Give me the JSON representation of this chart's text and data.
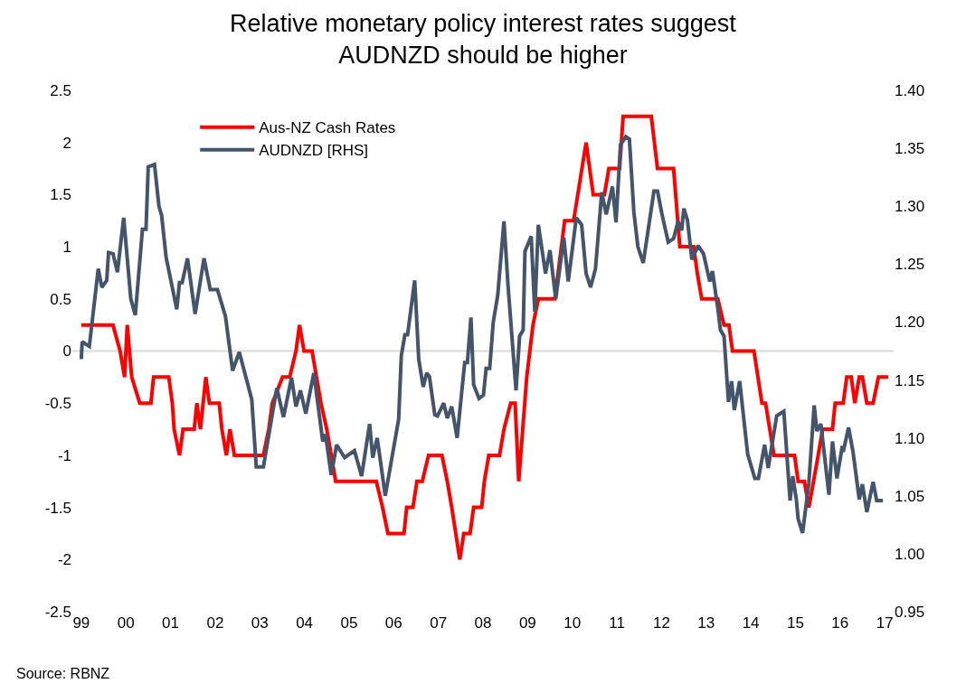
{
  "chart_data": {
    "type": "line",
    "title": "Relative monetary policy interest rates suggest\nAUDNZD should be higher",
    "annotations": [
      "Source: RBNZ"
    ],
    "xlim": [
      1998.8,
      2017.2
    ],
    "xticks": [
      {
        "value": 1999,
        "label": "99"
      },
      {
        "value": 2000,
        "label": "00"
      },
      {
        "value": 2001,
        "label": "01"
      },
      {
        "value": 2002,
        "label": "02"
      },
      {
        "value": 2003,
        "label": "03"
      },
      {
        "value": 2004,
        "label": "04"
      },
      {
        "value": 2005,
        "label": "05"
      },
      {
        "value": 2006,
        "label": "06"
      },
      {
        "value": 2007,
        "label": "07"
      },
      {
        "value": 2008,
        "label": "08"
      },
      {
        "value": 2009,
        "label": "09"
      },
      {
        "value": 2010,
        "label": "10"
      },
      {
        "value": 2011,
        "label": "11"
      },
      {
        "value": 2012,
        "label": "12"
      },
      {
        "value": 2013,
        "label": "13"
      },
      {
        "value": 2014,
        "label": "14"
      },
      {
        "value": 2015,
        "label": "15"
      },
      {
        "value": 2016,
        "label": "16"
      },
      {
        "value": 2017,
        "label": "17"
      }
    ],
    "ylim": [
      -2.5,
      2.5
    ],
    "yticks": [
      {
        "value": -2.5,
        "label": "-2.5"
      },
      {
        "value": -2,
        "label": "-2"
      },
      {
        "value": -1.5,
        "label": "-1.5"
      },
      {
        "value": -1,
        "label": "-1"
      },
      {
        "value": -0.5,
        "label": "-0.5"
      },
      {
        "value": 0,
        "label": "0"
      },
      {
        "value": 0.5,
        "label": "0.5"
      },
      {
        "value": 1,
        "label": "1"
      },
      {
        "value": 1.5,
        "label": "1.5"
      },
      {
        "value": 2,
        "label": "2"
      },
      {
        "value": 2.5,
        "label": "2.5"
      }
    ],
    "y2lim": [
      0.95,
      1.4
    ],
    "y2ticks": [
      {
        "value": 0.95,
        "label": "0.95"
      },
      {
        "value": 1.0,
        "label": "1.00"
      },
      {
        "value": 1.05,
        "label": "1.05"
      },
      {
        "value": 1.1,
        "label": "1.10"
      },
      {
        "value": 1.15,
        "label": "1.15"
      },
      {
        "value": 1.2,
        "label": "1.20"
      },
      {
        "value": 1.25,
        "label": "1.25"
      },
      {
        "value": 1.3,
        "label": "1.30"
      },
      {
        "value": 1.35,
        "label": "1.35"
      },
      {
        "value": 1.4,
        "label": "1.40"
      }
    ],
    "grid": false,
    "legend": "top left",
    "marker": "none",
    "line_style": "solid",
    "ref_lines": [
      {
        "axis": "y",
        "value": 0,
        "color": "#d9d9d9"
      }
    ],
    "series": [
      {
        "name": "Aus-NZ Cash Rates",
        "color": "#ff0000",
        "axis": "y",
        "x": [
          1999.0,
          1999.71,
          1999.87,
          1999.97,
          2000.03,
          2000.13,
          2000.31,
          2000.56,
          2000.62,
          2000.96,
          2001.04,
          2001.08,
          2001.2,
          2001.28,
          2001.53,
          2001.59,
          2001.67,
          2001.79,
          2001.87,
          2002.09,
          2002.15,
          2002.25,
          2002.33,
          2002.43,
          2003.08,
          2003.2,
          2003.28,
          2003.51,
          2003.67,
          2003.81,
          2003.89,
          2003.99,
          2004.17,
          2004.27,
          2004.37,
          2004.5,
          2004.6,
          2004.7,
          2005.61,
          2005.75,
          2005.87,
          2006.23,
          2006.29,
          2006.43,
          2006.52,
          2006.64,
          2006.78,
          2007.08,
          2007.2,
          2007.3,
          2007.48,
          2007.57,
          2007.71,
          2007.79,
          2007.97,
          2008.03,
          2008.13,
          2008.37,
          2008.47,
          2008.62,
          2008.72,
          2008.8,
          2008.98,
          2009.12,
          2009.24,
          2009.61,
          2009.83,
          2010.03,
          2010.31,
          2010.47,
          2010.72,
          2010.82,
          2011.06,
          2011.14,
          2011.77,
          2011.91,
          2012.27,
          2012.41,
          2012.72,
          2012.8,
          2012.9,
          2013.26,
          2013.4,
          2013.51,
          2013.59,
          2014.07,
          2014.25,
          2014.33,
          2014.52,
          2014.98,
          2015.06,
          2015.2,
          2015.3,
          2015.51,
          2015.61,
          2015.83,
          2015.89,
          2016.07,
          2016.15,
          2016.25,
          2016.33,
          2016.43,
          2016.5,
          2016.6,
          2016.74,
          2016.86,
          2017.08
        ],
        "values": [
          0.25,
          0.25,
          0,
          -0.25,
          0.25,
          -0.25,
          -0.5,
          -0.5,
          -0.25,
          -0.25,
          -0.5,
          -0.75,
          -1.0,
          -0.75,
          -0.75,
          -0.5,
          -0.75,
          -0.25,
          -0.5,
          -0.5,
          -0.75,
          -1.0,
          -0.75,
          -1.0,
          -1.0,
          -0.75,
          -0.5,
          -0.25,
          -0.25,
          0,
          0.25,
          0,
          0,
          -0.25,
          -0.5,
          -0.75,
          -1.0,
          -1.25,
          -1.25,
          -1.5,
          -1.75,
          -1.75,
          -1.5,
          -1.5,
          -1.25,
          -1.25,
          -1.0,
          -1.0,
          -1.25,
          -1.5,
          -2.0,
          -1.75,
          -1.75,
          -1.5,
          -1.5,
          -1.25,
          -1.0,
          -1.0,
          -0.75,
          -0.5,
          -0.5,
          -1.25,
          -0.25,
          0.25,
          0.5,
          0.5,
          1.25,
          1.25,
          2.0,
          1.5,
          1.5,
          1.75,
          1.75,
          2.25,
          2.25,
          1.75,
          1.75,
          1.0,
          1.0,
          0.75,
          0.5,
          0.5,
          0.25,
          0.25,
          0,
          0,
          -0.5,
          -0.5,
          -1.0,
          -1.0,
          -1.25,
          -1.25,
          -1.5,
          -1.0,
          -0.75,
          -0.75,
          -0.5,
          -0.5,
          -0.25,
          -0.25,
          -0.5,
          -0.25,
          -0.25,
          -0.5,
          -0.5,
          -0.25,
          -0.25
        ]
      },
      {
        "name": "AUDNZD [RHS]",
        "color": "#44546a",
        "axis": "y2",
        "x": [
          1999.0,
          1999.02,
          1999.18,
          1999.38,
          1999.46,
          1999.57,
          1999.61,
          1999.71,
          1999.81,
          1999.95,
          2000.11,
          2000.21,
          2000.37,
          2000.45,
          2000.5,
          2000.64,
          2000.74,
          2000.8,
          2000.9,
          2001.14,
          2001.2,
          2001.26,
          2001.38,
          2001.55,
          2001.75,
          2001.89,
          2002.05,
          2002.23,
          2002.39,
          2002.54,
          2002.82,
          2002.92,
          2003.08,
          2003.38,
          2003.53,
          2003.71,
          2003.81,
          2003.91,
          2004.03,
          2004.21,
          2004.41,
          2004.47,
          2004.6,
          2004.72,
          2004.9,
          2005.12,
          2005.28,
          2005.46,
          2005.53,
          2005.63,
          2005.81,
          2006.11,
          2006.17,
          2006.25,
          2006.31,
          2006.47,
          2006.56,
          2006.66,
          2006.74,
          2006.8,
          2006.92,
          2006.98,
          2007.12,
          2007.2,
          2007.3,
          2007.42,
          2007.59,
          2007.65,
          2007.73,
          2007.79,
          2007.91,
          2008.01,
          2008.07,
          2008.15,
          2008.23,
          2008.33,
          2008.47,
          2008.56,
          2008.74,
          2008.82,
          2008.9,
          2008.94,
          2009.08,
          2009.16,
          2009.24,
          2009.4,
          2009.5,
          2009.63,
          2009.81,
          2009.91,
          2010.09,
          2010.21,
          2010.31,
          2010.41,
          2010.52,
          2010.66,
          2010.76,
          2010.9,
          2010.98,
          2011.08,
          2011.2,
          2011.28,
          2011.38,
          2011.47,
          2011.59,
          2011.83,
          2011.91,
          2012.01,
          2012.15,
          2012.27,
          2012.37,
          2012.45,
          2012.5,
          2012.58,
          2012.68,
          2012.82,
          2012.94,
          2013.08,
          2013.14,
          2013.26,
          2013.32,
          2013.4,
          2013.5,
          2013.57,
          2013.63,
          2013.75,
          2013.93,
          2014.09,
          2014.17,
          2014.31,
          2014.39,
          2014.58,
          2014.74,
          2014.88,
          2014.94,
          2015.02,
          2015.06,
          2015.16,
          2015.3,
          2015.42,
          2015.48,
          2015.57,
          2015.75,
          2015.83,
          2015.93,
          2016.05,
          2016.07,
          2016.19,
          2016.29,
          2016.43,
          2016.5,
          2016.6,
          2016.74,
          2016.82,
          2016.96
        ],
        "values": [
          1.168,
          1.183,
          1.179,
          1.246,
          1.23,
          1.236,
          1.26,
          1.259,
          1.243,
          1.29,
          1.22,
          1.206,
          1.28,
          1.28,
          1.334,
          1.336,
          1.3,
          1.292,
          1.256,
          1.211,
          1.234,
          1.234,
          1.255,
          1.207,
          1.255,
          1.228,
          1.228,
          1.205,
          1.158,
          1.174,
          1.133,
          1.075,
          1.075,
          1.143,
          1.118,
          1.152,
          1.127,
          1.141,
          1.121,
          1.156,
          1.097,
          1.103,
          1.068,
          1.094,
          1.083,
          1.089,
          1.067,
          1.112,
          1.083,
          1.1,
          1.05,
          1.116,
          1.171,
          1.189,
          1.189,
          1.236,
          1.168,
          1.144,
          1.156,
          1.153,
          1.12,
          1.119,
          1.13,
          1.117,
          1.127,
          1.1,
          1.165,
          1.165,
          1.204,
          1.146,
          1.134,
          1.137,
          1.16,
          1.16,
          1.2,
          1.223,
          1.287,
          1.232,
          1.141,
          1.188,
          1.193,
          1.261,
          1.274,
          1.209,
          1.284,
          1.242,
          1.262,
          1.22,
          1.273,
          1.235,
          1.29,
          1.284,
          1.242,
          1.23,
          1.246,
          1.312,
          1.293,
          1.317,
          1.286,
          1.353,
          1.36,
          1.358,
          1.295,
          1.265,
          1.251,
          1.313,
          1.313,
          1.293,
          1.269,
          1.272,
          1.287,
          1.279,
          1.298,
          1.288,
          1.254,
          1.266,
          1.259,
          1.235,
          1.244,
          1.212,
          1.193,
          1.188,
          1.131,
          1.149,
          1.124,
          1.149,
          1.086,
          1.065,
          1.065,
          1.094,
          1.074,
          1.119,
          1.123,
          1.046,
          1.067,
          1.047,
          1.03,
          1.018,
          1.061,
          1.128,
          1.106,
          1.112,
          1.051,
          1.097,
          1.065,
          1.093,
          1.088,
          1.109,
          1.088,
          1.047,
          1.06,
          1.036,
          1.062,
          1.046,
          1.046
        ]
      }
    ]
  }
}
